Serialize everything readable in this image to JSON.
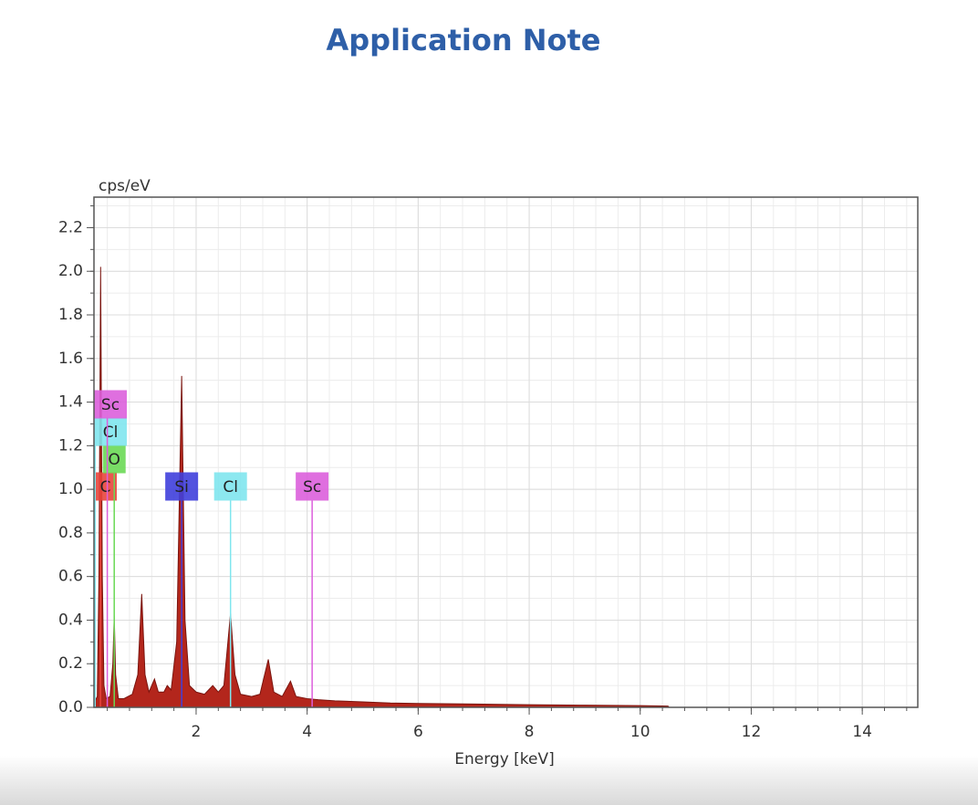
{
  "chart_data": {
    "type": "area",
    "title": "Application Note",
    "ylabel": "cps/eV",
    "xlabel": "Energy [keV]",
    "xlim": [
      0.16,
      15
    ],
    "ylim": [
      0,
      2.34
    ],
    "xticks": [
      2,
      4,
      6,
      8,
      10,
      12,
      14
    ],
    "yticks": [
      {
        "value": 0,
        "label": "0.0"
      },
      0.2,
      0.4,
      0.6,
      0.8,
      {
        "value": 1,
        "label": "1.0"
      },
      1.2,
      1.4,
      1.6,
      1.8,
      {
        "value": 2,
        "label": "2.0"
      },
      2.2
    ],
    "grid": true,
    "color": "#b3261c",
    "x": [
      0.16,
      0.22,
      0.25,
      0.28,
      0.31,
      0.34,
      0.38,
      0.45,
      0.5,
      0.525,
      0.55,
      0.6,
      0.7,
      0.85,
      0.95,
      1.02,
      1.08,
      1.15,
      1.25,
      1.32,
      1.42,
      1.48,
      1.55,
      1.65,
      1.74,
      1.8,
      1.88,
      2.0,
      2.15,
      2.3,
      2.4,
      2.5,
      2.62,
      2.7,
      2.8,
      3.0,
      3.15,
      3.3,
      3.4,
      3.55,
      3.7,
      3.8,
      4.0,
      4.2,
      4.5,
      5,
      5.5,
      6,
      7,
      8,
      9,
      10,
      10.5,
      10.52,
      15
    ],
    "values": [
      0.02,
      0.05,
      0.6,
      2.02,
      0.6,
      0.1,
      0.04,
      0.05,
      0.2,
      0.42,
      0.15,
      0.04,
      0.04,
      0.06,
      0.15,
      0.52,
      0.15,
      0.07,
      0.13,
      0.07,
      0.07,
      0.1,
      0.08,
      0.3,
      1.52,
      0.4,
      0.1,
      0.07,
      0.06,
      0.1,
      0.07,
      0.1,
      0.43,
      0.15,
      0.06,
      0.05,
      0.06,
      0.22,
      0.07,
      0.05,
      0.12,
      0.05,
      0.04,
      0.035,
      0.03,
      0.025,
      0.02,
      0.018,
      0.015,
      0.012,
      0.01,
      0.008,
      0.006,
      0,
      0
    ],
    "markers": [
      {
        "label": "Si",
        "x": 1.74,
        "color": "#3f3fdc"
      },
      {
        "label": "Cl",
        "x": 2.62,
        "color": "#7fe6ee"
      },
      {
        "label": "Sc",
        "x": 4.09,
        "color": "#dc5fdc"
      },
      {
        "label": "C",
        "x": 0.277,
        "color": "#e8453c"
      },
      {
        "label": "O",
        "x": 0.525,
        "color": "#6ad955"
      },
      {
        "label": "Cl",
        "x": 0.18,
        "color": "#7fe6ee"
      },
      {
        "label": "Sc",
        "x": 0.4,
        "color": "#dc5fdc"
      }
    ]
  }
}
